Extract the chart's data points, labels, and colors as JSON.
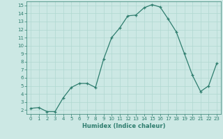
{
  "x": [
    0,
    1,
    2,
    3,
    4,
    5,
    6,
    7,
    8,
    9,
    10,
    11,
    12,
    13,
    14,
    15,
    16,
    17,
    18,
    19,
    20,
    21,
    22,
    23
  ],
  "y": [
    2.2,
    2.3,
    1.8,
    1.8,
    3.5,
    4.8,
    5.3,
    5.3,
    4.8,
    8.3,
    11.0,
    12.2,
    13.7,
    13.8,
    14.7,
    15.1,
    14.8,
    13.3,
    11.7,
    9.0,
    6.3,
    4.3,
    5.0,
    7.8
  ],
  "xlim": [
    -0.5,
    23.5
  ],
  "ylim": [
    1.5,
    15.5
  ],
  "yticks": [
    2,
    3,
    4,
    5,
    6,
    7,
    8,
    9,
    10,
    11,
    12,
    13,
    14,
    15
  ],
  "xticks": [
    0,
    1,
    2,
    3,
    4,
    5,
    6,
    7,
    8,
    9,
    10,
    11,
    12,
    13,
    14,
    15,
    16,
    17,
    18,
    19,
    20,
    21,
    22,
    23
  ],
  "xlabel": "Humidex (Indice chaleur)",
  "line_color": "#2e7d6e",
  "marker": "+",
  "bg_color": "#cce8e4",
  "grid_color": "#b0d8d0",
  "title": ""
}
